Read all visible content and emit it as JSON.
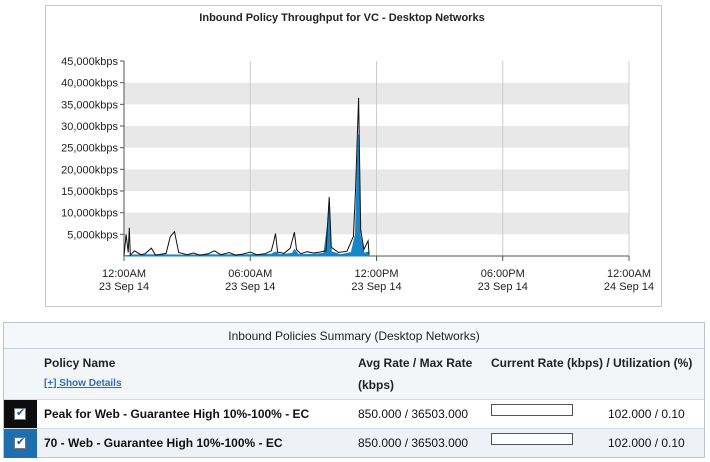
{
  "chart_data": {
    "type": "area",
    "title": "Inbound Policy Throughput for VC - Desktop Networks",
    "xlabel": "",
    "ylabel": "",
    "ylim": [
      0,
      45000
    ],
    "yticks": [
      "5,000kbps",
      "10,000kbps",
      "15,000kbps",
      "20,000kbps",
      "25,000kbps",
      "30,000kbps",
      "35,000kbps",
      "40,000kbps",
      "45,000kbps"
    ],
    "ytick_values": [
      5000,
      10000,
      15000,
      20000,
      25000,
      30000,
      35000,
      40000,
      45000
    ],
    "xticks": [
      {
        "time": "12:00AM",
        "date": "23 Sep 14",
        "hour": 0
      },
      {
        "time": "06:00AM",
        "date": "23 Sep 14",
        "hour": 6
      },
      {
        "time": "12:00PM",
        "date": "23 Sep 14",
        "hour": 12
      },
      {
        "time": "06:00PM",
        "date": "23 Sep 14",
        "hour": 18
      },
      {
        "time": "12:00AM",
        "date": "24 Sep 14",
        "hour": 24
      }
    ],
    "grid": true,
    "series": [
      {
        "name": "Max Rate",
        "color": "#111111",
        "kind": "line",
        "points": [
          [
            0,
            0
          ],
          [
            0.1,
            5000
          ],
          [
            0.2,
            800
          ],
          [
            0.25,
            6500
          ],
          [
            0.3,
            200
          ],
          [
            0.5,
            1200
          ],
          [
            0.8,
            300
          ],
          [
            1.0,
            500
          ],
          [
            1.3,
            1800
          ],
          [
            1.5,
            200
          ],
          [
            2.0,
            600
          ],
          [
            2.2,
            4500
          ],
          [
            2.4,
            5600
          ],
          [
            2.6,
            800
          ],
          [
            3.0,
            300
          ],
          [
            3.3,
            700
          ],
          [
            3.6,
            200
          ],
          [
            4.0,
            500
          ],
          [
            4.3,
            1200
          ],
          [
            4.6,
            300
          ],
          [
            5.0,
            800
          ],
          [
            5.3,
            200
          ],
          [
            5.6,
            400
          ],
          [
            6.0,
            900
          ],
          [
            6.3,
            300
          ],
          [
            6.7,
            500
          ],
          [
            7.0,
            1200
          ],
          [
            7.1,
            3000
          ],
          [
            7.2,
            5200
          ],
          [
            7.3,
            900
          ],
          [
            7.6,
            600
          ],
          [
            7.9,
            1800
          ],
          [
            8.1,
            5500
          ],
          [
            8.2,
            1500
          ],
          [
            8.4,
            500
          ],
          [
            8.7,
            1000
          ],
          [
            9.0,
            700
          ],
          [
            9.3,
            900
          ],
          [
            9.6,
            1200
          ],
          [
            9.75,
            13600
          ],
          [
            9.85,
            2000
          ],
          [
            10.2,
            800
          ],
          [
            10.6,
            1100
          ],
          [
            10.9,
            4500
          ],
          [
            11.0,
            15000
          ],
          [
            11.15,
            36500
          ],
          [
            11.25,
            6000
          ],
          [
            11.4,
            1500
          ],
          [
            11.6,
            3500
          ],
          [
            11.65,
            300
          ]
        ]
      },
      {
        "name": "Avg Rate",
        "color": "#1a85c5",
        "kind": "area",
        "points": [
          [
            0,
            0
          ],
          [
            0.3,
            200
          ],
          [
            1.0,
            300
          ],
          [
            2.0,
            250
          ],
          [
            3.0,
            200
          ],
          [
            4.0,
            300
          ],
          [
            5.0,
            250
          ],
          [
            6.0,
            300
          ],
          [
            7.0,
            400
          ],
          [
            7.2,
            900
          ],
          [
            7.4,
            300
          ],
          [
            8.0,
            600
          ],
          [
            8.1,
            1500
          ],
          [
            8.3,
            300
          ],
          [
            9.0,
            400
          ],
          [
            9.5,
            600
          ],
          [
            9.7,
            8000
          ],
          [
            9.75,
            12500
          ],
          [
            9.85,
            1000
          ],
          [
            10.3,
            300
          ],
          [
            10.8,
            800
          ],
          [
            11.0,
            5000
          ],
          [
            11.1,
            23000
          ],
          [
            11.15,
            28000
          ],
          [
            11.22,
            5000
          ],
          [
            11.4,
            600
          ],
          [
            11.6,
            900
          ],
          [
            11.65,
            0
          ]
        ]
      }
    ]
  },
  "summary": {
    "title": "Inbound Policies Summary (Desktop Networks)",
    "headers": {
      "policy_name": "Policy Name",
      "avg_max": "Avg Rate / Max Rate",
      "kbps": "(kbps)",
      "current": "Current Rate (kbps) / Utilization (%)"
    },
    "show_details": "[+] Show Details",
    "rows": [
      {
        "checked": true,
        "name": "Peak for Web - Guarantee High 10%-100% - EC",
        "rates": "850.000 / 36503.000",
        "current": "102.000 / 0.10",
        "utilization": 0.1
      },
      {
        "checked": true,
        "name": "70 - Web - Guarantee High 10%-100% - EC",
        "rates": "850.000 / 36503.000",
        "current": "102.000 / 0.10",
        "utilization": 0.1
      }
    ]
  }
}
